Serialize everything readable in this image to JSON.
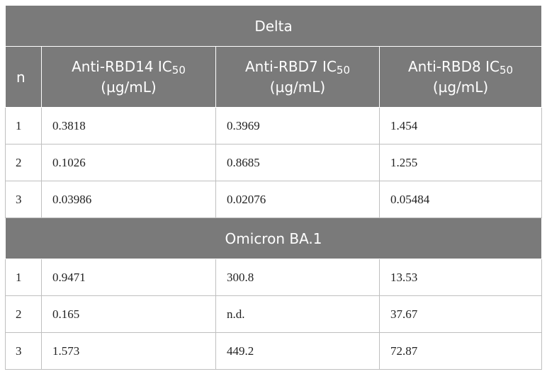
{
  "sections": [
    {
      "title": "Delta",
      "rows": [
        {
          "n": "1",
          "v": [
            "0.3818",
            "0.3969",
            "1.454"
          ]
        },
        {
          "n": "2",
          "v": [
            "0.1026",
            "0.8685",
            "1.255"
          ]
        },
        {
          "n": "3",
          "v": [
            "0.03986",
            "0.02076",
            "0.05484"
          ]
        }
      ]
    },
    {
      "title": "Omicron BA.1",
      "rows": [
        {
          "n": "1",
          "v": [
            "0.9471",
            "300.8",
            "13.53"
          ]
        },
        {
          "n": "2",
          "v": [
            "0.165",
            "n.d.",
            "37.67"
          ]
        },
        {
          "n": "3",
          "v": [
            "1.573",
            "449.2",
            "72.87"
          ]
        }
      ]
    }
  ],
  "columns": {
    "n": "n",
    "c1": {
      "name": "Anti-RBD14 IC",
      "sub": "50",
      "unit": "(µg/mL)"
    },
    "c2": {
      "name": "Anti-RBD7 IC",
      "sub": "50",
      "unit": "(µg/mL)"
    },
    "c3": {
      "name": "Anti-RBD8 IC",
      "sub": "50",
      "unit": "(µg/mL)"
    }
  }
}
